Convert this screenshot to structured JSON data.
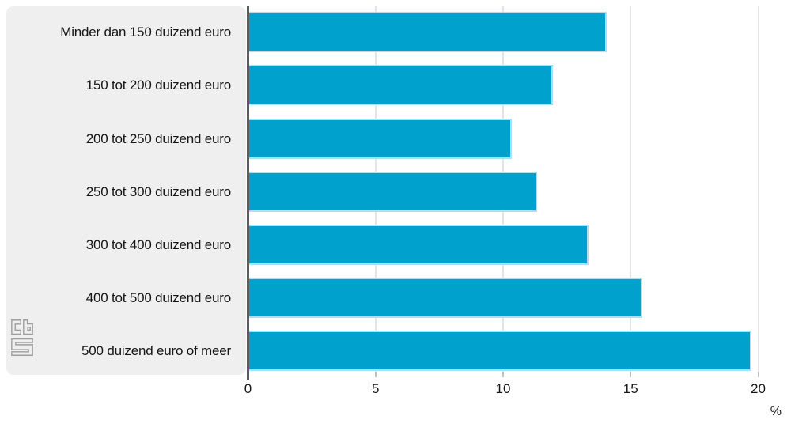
{
  "chart_data": {
    "type": "bar",
    "orientation": "horizontal",
    "title": "",
    "categories": [
      "Minder dan 150 duizend euro",
      "150 tot 200 duizend euro",
      "200 tot 250 duizend euro",
      "250 tot 300 duizend euro",
      "300 tot 400 duizend euro",
      "400 tot 500 duizend euro",
      "500 duizend euro of meer"
    ],
    "values": [
      14.0,
      11.9,
      10.3,
      11.3,
      13.3,
      15.4,
      19.7
    ],
    "x_ticks": [
      0,
      5,
      10,
      15,
      20
    ],
    "xlim": [
      0,
      20.6
    ],
    "xlabel": "%",
    "ylabel": "",
    "grid": true,
    "legend_position": "none",
    "bar_color": "#00a1cd"
  },
  "colors": {
    "bar": "#00a1cd",
    "bar_border": "#aedff0",
    "panel": "#efefef",
    "axis": "#5c5c5e",
    "gridline": "#e4e4e4",
    "tick_mark": "#c0c0c0",
    "text": "#161616",
    "logo": "#9e9e9e",
    "background": "#ffffff"
  }
}
